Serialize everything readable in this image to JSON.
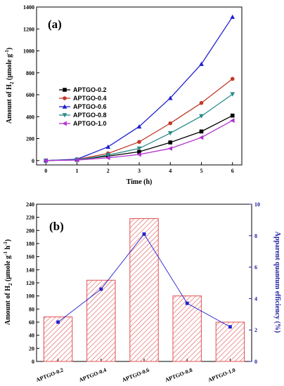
{
  "chart_data": [
    {
      "type": "line",
      "panel_label": "(a)",
      "xlabel": "Time (h)",
      "ylabel_parts": [
        "Amount of H",
        "2",
        " (μmole g",
        "-1",
        ")"
      ],
      "x": [
        0,
        1,
        2,
        3,
        4,
        5,
        6
      ],
      "xlim": [
        -0.3,
        6.3
      ],
      "ylim": [
        -40,
        1400
      ],
      "xticks": [
        0,
        1,
        2,
        3,
        4,
        5,
        6
      ],
      "yticks": [
        0,
        200,
        400,
        600,
        800,
        1000,
        1200,
        1400
      ],
      "legend_position": "left",
      "series": [
        {
          "name": "APTGO-0.2",
          "color": "#000000",
          "marker": "square",
          "values": [
            0,
            8,
            40,
            80,
            165,
            265,
            410
          ]
        },
        {
          "name": "APTGO-0.4",
          "color": "#c0392b",
          "marker": "circle",
          "values": [
            0,
            10,
            65,
            170,
            340,
            525,
            745
          ]
        },
        {
          "name": "APTGO-0.6",
          "color": "#1f1fd1",
          "marker": "triangle-up",
          "values": [
            0,
            12,
            125,
            310,
            570,
            880,
            1310
          ]
        },
        {
          "name": "APTGO-0.8",
          "color": "#2a8a8a",
          "marker": "triangle-down",
          "values": [
            0,
            6,
            50,
            110,
            250,
            405,
            605
          ]
        },
        {
          "name": "APTGO-1.0",
          "color": "#b030d0",
          "marker": "triangle-left",
          "values": [
            0,
            4,
            25,
            55,
            110,
            210,
            365
          ]
        }
      ]
    },
    {
      "type": "bar",
      "panel_label": "(b)",
      "categories": [
        "APTGO-0.2",
        "APTGO-0.4",
        "APTGO-0.6",
        "APTGO-0.8",
        "APTGO-1.0"
      ],
      "ylabel_parts": [
        "Amount of H",
        "2",
        " (μmole g",
        "-1",
        " h",
        "-1",
        ")"
      ],
      "y2label": "Apparent quantum efficiency (%)",
      "ylim": [
        0,
        240
      ],
      "yticks": [
        0,
        20,
        40,
        60,
        80,
        100,
        120,
        140,
        160,
        180,
        200,
        220,
        240
      ],
      "y2lim": [
        0,
        10
      ],
      "y2ticks": [
        0,
        2,
        4,
        6,
        8,
        10
      ],
      "bar_values": [
        68,
        124,
        218,
        100,
        60
      ],
      "bar_color": "#e05050",
      "line_values": [
        2.5,
        4.6,
        8.1,
        3.7,
        2.2
      ],
      "line_color": "#2020d0"
    }
  ]
}
